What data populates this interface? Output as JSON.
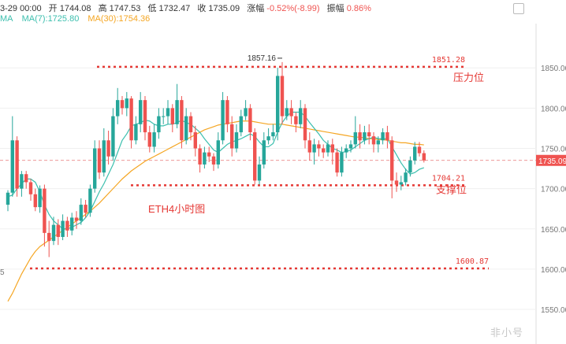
{
  "header": {
    "date": "3-29 00:00",
    "open_label": "开",
    "open": "1744.08",
    "high_label": "高",
    "high": "1747.53",
    "low_label": "低",
    "low": "1732.47",
    "close_label": "收",
    "close": "1735.09",
    "change_label": "涨幅",
    "change": "-0.52%(-8.99)",
    "amplitude_label": "振幅",
    "amplitude": "0.86%"
  },
  "ma": {
    "ma7_label": "MA(7):1725.80",
    "ma30_label": "MA(30):1754.36",
    "ma7_color": "#3cbfae",
    "ma30_color": "#f5a623"
  },
  "colors": {
    "up": "#26a69a",
    "down": "#ef5350",
    "level": "#e53935",
    "axis_text": "#777777"
  },
  "watermark": "非小号",
  "chart_data": {
    "type": "candlestick",
    "y_ticks": [
      1550,
      1600,
      1650,
      1700,
      1750,
      1800,
      1850
    ],
    "ylim": [
      1507,
      1905
    ],
    "left_axis_fragment": "5",
    "current_price": "1735.09",
    "levels": [
      {
        "value": 1851.28,
        "label": "1851.28",
        "text": "压力位"
      },
      {
        "value": 1704.21,
        "label": "1704.21",
        "text": "支撑位"
      },
      {
        "value": 1600.87,
        "label": "1600.87",
        "text": ""
      }
    ],
    "high_marker": "1857.16",
    "annotation": "ETH4小时图",
    "candles": [
      [
        1680,
        1695,
        1672,
        1698
      ],
      [
        1695,
        1760,
        1690,
        1790
      ],
      [
        1760,
        1700,
        1690,
        1765
      ],
      [
        1700,
        1718,
        1690,
        1722
      ],
      [
        1718,
        1708,
        1700,
        1722
      ],
      [
        1708,
        1693,
        1685,
        1712
      ],
      [
        1693,
        1677,
        1672,
        1700
      ],
      [
        1677,
        1700,
        1670,
        1704
      ],
      [
        1700,
        1645,
        1628,
        1705
      ],
      [
        1645,
        1635,
        1615,
        1660
      ],
      [
        1635,
        1655,
        1630,
        1665
      ],
      [
        1655,
        1640,
        1630,
        1662
      ],
      [
        1640,
        1660,
        1636,
        1668
      ],
      [
        1660,
        1648,
        1640,
        1665
      ],
      [
        1648,
        1664,
        1642,
        1670
      ],
      [
        1664,
        1660,
        1650,
        1672
      ],
      [
        1660,
        1680,
        1655,
        1688
      ],
      [
        1680,
        1670,
        1664,
        1686
      ],
      [
        1670,
        1700,
        1665,
        1705
      ],
      [
        1700,
        1750,
        1695,
        1760
      ],
      [
        1750,
        1720,
        1712,
        1760
      ],
      [
        1720,
        1760,
        1715,
        1775
      ],
      [
        1760,
        1740,
        1730,
        1772
      ],
      [
        1740,
        1790,
        1735,
        1800
      ],
      [
        1790,
        1810,
        1780,
        1825
      ],
      [
        1810,
        1800,
        1792,
        1815
      ],
      [
        1800,
        1812,
        1790,
        1820
      ],
      [
        1812,
        1760,
        1750,
        1815
      ],
      [
        1760,
        1780,
        1755,
        1790
      ],
      [
        1780,
        1810,
        1770,
        1820
      ],
      [
        1810,
        1770,
        1760,
        1815
      ],
      [
        1770,
        1752,
        1745,
        1778
      ],
      [
        1752,
        1770,
        1745,
        1780
      ],
      [
        1770,
        1790,
        1762,
        1800
      ],
      [
        1790,
        1790,
        1780,
        1800
      ],
      [
        1790,
        1800,
        1780,
        1810
      ],
      [
        1800,
        1780,
        1770,
        1805
      ],
      [
        1780,
        1810,
        1775,
        1830
      ],
      [
        1810,
        1760,
        1750,
        1815
      ],
      [
        1760,
        1790,
        1755,
        1800
      ],
      [
        1790,
        1770,
        1760,
        1795
      ],
      [
        1770,
        1750,
        1740,
        1778
      ],
      [
        1750,
        1730,
        1720,
        1755
      ],
      [
        1730,
        1745,
        1725,
        1752
      ],
      [
        1745,
        1740,
        1733,
        1752
      ],
      [
        1740,
        1730,
        1722,
        1744
      ],
      [
        1730,
        1760,
        1725,
        1770
      ],
      [
        1760,
        1810,
        1755,
        1820
      ],
      [
        1810,
        1780,
        1770,
        1815
      ],
      [
        1780,
        1750,
        1740,
        1790
      ],
      [
        1750,
        1770,
        1745,
        1780
      ],
      [
        1770,
        1790,
        1765,
        1798
      ],
      [
        1790,
        1800,
        1785,
        1810
      ],
      [
        1800,
        1770,
        1760,
        1805
      ],
      [
        1770,
        1710,
        1705,
        1775
      ],
      [
        1710,
        1730,
        1705,
        1740
      ],
      [
        1730,
        1760,
        1725,
        1770
      ],
      [
        1760,
        1765,
        1755,
        1775
      ],
      [
        1765,
        1770,
        1760,
        1780
      ],
      [
        1770,
        1840,
        1760,
        1850
      ],
      [
        1840,
        1790,
        1780,
        1857.16
      ],
      [
        1790,
        1800,
        1785,
        1810
      ],
      [
        1800,
        1790,
        1780,
        1810
      ],
      [
        1790,
        1780,
        1770,
        1795
      ],
      [
        1780,
        1800,
        1775,
        1810
      ],
      [
        1800,
        1760,
        1750,
        1805
      ],
      [
        1760,
        1745,
        1735,
        1770
      ],
      [
        1745,
        1755,
        1730,
        1762
      ],
      [
        1755,
        1750,
        1740,
        1760
      ],
      [
        1750,
        1745,
        1738,
        1755
      ],
      [
        1745,
        1755,
        1740,
        1760
      ],
      [
        1755,
        1745,
        1730,
        1762
      ],
      [
        1745,
        1720,
        1715,
        1750
      ],
      [
        1720,
        1745,
        1715,
        1752
      ],
      [
        1745,
        1750,
        1738,
        1755
      ],
      [
        1750,
        1755,
        1745,
        1760
      ],
      [
        1755,
        1770,
        1750,
        1790
      ],
      [
        1770,
        1760,
        1750,
        1780
      ],
      [
        1760,
        1770,
        1755,
        1778
      ],
      [
        1770,
        1765,
        1755,
        1780
      ],
      [
        1765,
        1755,
        1745,
        1770
      ],
      [
        1755,
        1760,
        1745,
        1765
      ],
      [
        1760,
        1770,
        1755,
        1775
      ],
      [
        1770,
        1760,
        1750,
        1778
      ],
      [
        1760,
        1710,
        1688,
        1765
      ],
      [
        1710,
        1705,
        1696,
        1720
      ],
      [
        1705,
        1708,
        1698,
        1716
      ],
      [
        1708,
        1720,
        1704,
        1725
      ],
      [
        1720,
        1735,
        1715,
        1740
      ],
      [
        1735,
        1752,
        1730,
        1758
      ],
      [
        1752,
        1744,
        1740,
        1758
      ],
      [
        1744.08,
        1735.09,
        1732.47,
        1747.53
      ]
    ],
    "ma7": [
      1690,
      1692,
      1700,
      1706,
      1712,
      1712,
      1708,
      1696,
      1680,
      1668,
      1660,
      1655,
      1650,
      1650,
      1652,
      1655,
      1658,
      1664,
      1672,
      1684,
      1696,
      1706,
      1718,
      1730,
      1745,
      1760,
      1768,
      1778,
      1780,
      1782,
      1785,
      1784,
      1780,
      1778,
      1778,
      1780,
      1780,
      1782,
      1785,
      1782,
      1780,
      1775,
      1770,
      1762,
      1755,
      1748,
      1745,
      1750,
      1755,
      1758,
      1760,
      1762,
      1765,
      1768,
      1765,
      1758,
      1752,
      1752,
      1756,
      1770,
      1782,
      1790,
      1795,
      1795,
      1795,
      1790,
      1782,
      1775,
      1768,
      1760,
      1755,
      1750,
      1748,
      1745,
      1746,
      1748,
      1752,
      1756,
      1760,
      1762,
      1764,
      1762,
      1762,
      1762,
      1752,
      1742,
      1732,
      1724,
      1718,
      1720,
      1724,
      1726
    ],
    "ma30": [
      1560,
      1570,
      1582,
      1594,
      1604,
      1614,
      1622,
      1628,
      1632,
      1636,
      1640,
      1644,
      1648,
      1652,
      1656,
      1660,
      1664,
      1668,
      1672,
      1677,
      1682,
      1688,
      1694,
      1700,
      1706,
      1712,
      1717,
      1722,
      1726,
      1730,
      1734,
      1737,
      1740,
      1743,
      1746,
      1749,
      1752,
      1755,
      1758,
      1761,
      1764,
      1767,
      1770,
      1773,
      1775,
      1777,
      1779,
      1780,
      1781,
      1782,
      1783,
      1784,
      1784,
      1784,
      1783,
      1782,
      1781,
      1780,
      1780,
      1780,
      1780,
      1779,
      1778,
      1777,
      1776,
      1775,
      1774,
      1773,
      1772,
      1771,
      1770,
      1769,
      1768,
      1767,
      1766,
      1765,
      1764,
      1764,
      1763,
      1762,
      1762,
      1761,
      1761,
      1760,
      1759,
      1758,
      1757,
      1757,
      1756,
      1755,
      1755,
      1754.36
    ]
  }
}
